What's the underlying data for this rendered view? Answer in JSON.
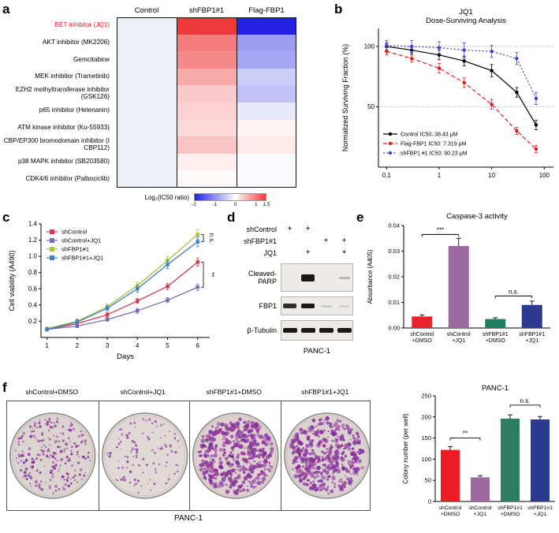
{
  "panels": {
    "a": "a",
    "b": "b",
    "c": "c",
    "d": "d",
    "e": "e",
    "f": "f"
  },
  "chart_data": [
    {
      "id": "heatmap_a",
      "type": "heatmap",
      "columns": [
        "Control",
        "shFBP1#1",
        "Flag-FBP1"
      ],
      "rows": [
        "BET inhibitor (JQ1)",
        "AKT inhibitor (MK2206)",
        "Gemcitabine",
        "MEK inhibitor (Trametinib)",
        "EZH2  methyltransferase inhibitor (GSK126)",
        "p65 inhibitor (Helenanin)",
        "ATM kinase inhibitor (Ku-55933)",
        "CBP/EP300 bromodomain inhibitor (I CBP112)",
        "p38 MAPK inhibitor (SB203580)",
        "CDK4/6 inhibitor (Palbociclib)"
      ],
      "values": [
        [
          0,
          1.5,
          -2.0
        ],
        [
          0,
          1.0,
          -0.9
        ],
        [
          0,
          0.9,
          -0.8
        ],
        [
          0,
          0.65,
          -0.45
        ],
        [
          0,
          0.4,
          -0.55
        ],
        [
          0,
          0.35,
          -0.2
        ],
        [
          0,
          0.3,
          0.1
        ],
        [
          0,
          0.45,
          0.15
        ],
        [
          0,
          0.12,
          -0.05
        ],
        [
          0,
          0.05,
          -0.05
        ]
      ],
      "highlight_row": 0,
      "highlight_color": "#e8192c",
      "colorbar": {
        "label": "Log₂(IC50 ratio)",
        "ticks": [
          "-2",
          "-1",
          "0",
          "1",
          "1.5"
        ],
        "min": -2,
        "max": 1.5
      }
    },
    {
      "id": "dose_b",
      "type": "line",
      "title": [
        "JQ1",
        "Dose-Surviving Analysis"
      ],
      "ylabel": "Normalized Surviving Fraction (%)",
      "xscale": "log",
      "xlim": [
        0.07,
        150
      ],
      "ylim": [
        0,
        115
      ],
      "xticks": [
        "0.1",
        "1",
        "10",
        "100"
      ],
      "yticks": [
        "50",
        "100"
      ],
      "x": [
        0.1,
        0.3,
        1,
        3,
        10,
        30,
        70
      ],
      "series": [
        {
          "name": "Control",
          "ic50": "IC50: 38.43 μM",
          "color": "#000000",
          "dash": "",
          "values": [
            100,
            97,
            93,
            88,
            80,
            62,
            35
          ],
          "err": [
            3,
            3,
            4,
            4,
            5,
            4,
            4
          ]
        },
        {
          "name": "Flag-FBP1",
          "ic50": "IC50: 7.319 μM",
          "color": "#e31a1c",
          "dash": "5,3",
          "values": [
            96,
            90,
            82,
            70,
            52,
            30,
            15
          ],
          "err": [
            3,
            3,
            4,
            4,
            4,
            3,
            3
          ]
        },
        {
          "name": "shFBP1 #1",
          "ic50": "IC50: 90.23 μM",
          "color": "#4040d0",
          "dash": "2,2.5",
          "values": [
            101,
            100,
            99,
            97,
            96,
            90,
            57
          ],
          "err": [
            4,
            5,
            5,
            6,
            5,
            5,
            5
          ]
        }
      ]
    },
    {
      "id": "viability_c",
      "type": "line",
      "ylabel": "Cell viability (A490)",
      "xlabel": "Days",
      "ylim": [
        0,
        1.4
      ],
      "yticks": [
        "0.2",
        "0.4",
        "0.6",
        "0.8",
        "1.0",
        "1.2",
        "1.4"
      ],
      "x": [
        1,
        2,
        3,
        4,
        5,
        6
      ],
      "series": [
        {
          "name": "shControl",
          "color": "#cf3a4f",
          "values": [
            0.1,
            0.17,
            0.28,
            0.45,
            0.63,
            0.93
          ],
          "err": [
            0.02,
            0.02,
            0.03,
            0.03,
            0.04,
            0.05
          ]
        },
        {
          "name": "shControl+JQ1",
          "color": "#7b68b5",
          "values": [
            0.1,
            0.14,
            0.22,
            0.33,
            0.46,
            0.62
          ],
          "err": [
            0.02,
            0.02,
            0.02,
            0.03,
            0.03,
            0.04
          ]
        },
        {
          "name": "shFBP1#1",
          "color": "#a9c43c",
          "values": [
            0.11,
            0.2,
            0.38,
            0.64,
            0.95,
            1.27
          ],
          "err": [
            0.02,
            0.03,
            0.03,
            0.04,
            0.05,
            0.06
          ]
        },
        {
          "name": "shFBP1#1+JQ1",
          "color": "#3f7fc1",
          "values": [
            0.1,
            0.19,
            0.36,
            0.6,
            0.9,
            1.18
          ],
          "err": [
            0.02,
            0.03,
            0.03,
            0.04,
            0.05,
            0.06
          ]
        }
      ],
      "annotations": [
        {
          "label": "n.s.",
          "between": [
            2,
            3
          ]
        },
        {
          "label": "**",
          "between": [
            0,
            1
          ]
        }
      ]
    },
    {
      "id": "caspase_e",
      "type": "bar",
      "title": "Caspase-3 activity",
      "ylabel": "Absorbance (A405)",
      "ylim": [
        0,
        0.04
      ],
      "yticks": [
        "0.00",
        "0.01",
        "0.02",
        "0.03",
        "0.04"
      ],
      "categories": [
        [
          "shControl",
          "+DMSO"
        ],
        [
          "shControl",
          "+JQ1"
        ],
        [
          "shFBP1#1",
          "+DMSO"
        ],
        [
          "shFBP1#1",
          "+JQ1"
        ]
      ],
      "values": [
        0.0045,
        0.032,
        0.0035,
        0.009
      ],
      "errors": [
        0.0006,
        0.003,
        0.0005,
        0.0015
      ],
      "colors": [
        "#e8232d",
        "#9d6a9f",
        "#1e7d5f",
        "#2b3a8f"
      ],
      "sig": [
        {
          "from": 0,
          "to": 1,
          "label": "***",
          "y": 0.0365
        },
        {
          "from": 2,
          "to": 3,
          "label": "n.s.",
          "y": 0.0125
        }
      ]
    },
    {
      "id": "colony_f",
      "type": "bar",
      "title": "PANC-1",
      "ylabel": "Colony number (per well)",
      "ylim": [
        0,
        250
      ],
      "yticks": [
        "0",
        "50",
        "100",
        "150",
        "200",
        "250"
      ],
      "categories": [
        [
          "shControl",
          "+DMSO"
        ],
        [
          "shControl",
          "+JQ1"
        ],
        [
          "shFBP1#1",
          "+DMSO"
        ],
        [
          "shFBP1#1",
          "+JQ1"
        ]
      ],
      "values": [
        122,
        57,
        196,
        194
      ],
      "errors": [
        8,
        4,
        9,
        7
      ],
      "colors": [
        "#ed1c24",
        "#9d6a9f",
        "#2e7d5f",
        "#2b3a8f"
      ],
      "sig": [
        {
          "from": 0,
          "to": 1,
          "label": "**",
          "y": 150
        },
        {
          "from": 2,
          "to": 3,
          "label": "n.s.",
          "y": 228
        }
      ]
    }
  ],
  "western": {
    "plus": "+",
    "conditions": [
      {
        "label": "shControl",
        "lanes": [
          1,
          1,
          0,
          0
        ]
      },
      {
        "label": "shFBP1#1",
        "lanes": [
          0,
          0,
          1,
          1
        ]
      },
      {
        "label": "JQ1",
        "lanes": [
          0,
          1,
          0,
          1
        ]
      }
    ],
    "blots": [
      {
        "label_lines": [
          "Cleaved-",
          "PARP"
        ],
        "bands": [
          0,
          1,
          0,
          0.25
        ]
      },
      {
        "label_lines": [
          "FBP1"
        ],
        "bands": [
          0.9,
          1,
          0.15,
          0.12
        ]
      },
      {
        "label_lines": [
          "β-Tubulin"
        ],
        "bands": [
          1,
          1,
          1,
          1
        ]
      }
    ],
    "cell_line": "PANC-1"
  },
  "colony_assay": {
    "plate_labels": [
      "shControl+DMSO",
      "shControl+JQ1",
      "shFBP1#1+DMSO",
      "shFBP1#1+JQ1"
    ],
    "cell_line": "PANC-1"
  }
}
